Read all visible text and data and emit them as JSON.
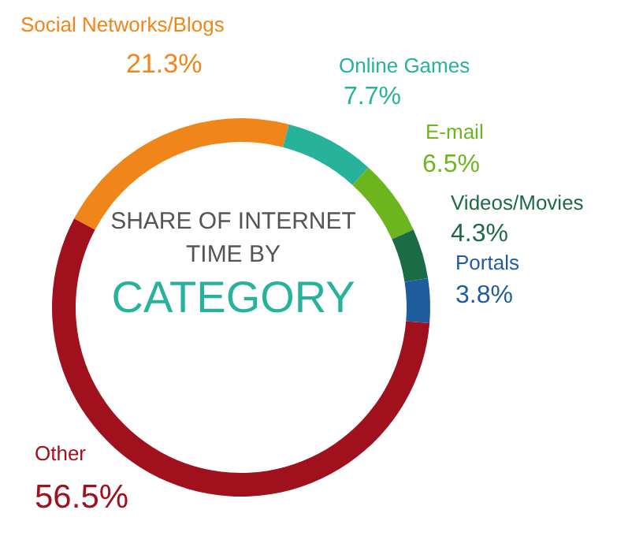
{
  "chart_data": {
    "type": "donut",
    "title": "SHARE OF INTERNET TIME BY",
    "subtitle": "CATEGORY",
    "categories": [
      "Social Networks/Blogs",
      "Online Games",
      "E-mail",
      "Videos/Movies",
      "Portals",
      "Other"
    ],
    "values": [
      21.3,
      7.7,
      6.5,
      4.3,
      3.8,
      56.5
    ],
    "colors": [
      "#f08519",
      "#27b29b",
      "#6db51f",
      "#1c6b47",
      "#1f5c9e",
      "#a0111d"
    ],
    "value_labels": [
      "21.3%",
      "7.7%",
      "6.5%",
      "4.3%",
      "3.8%",
      "56.5%"
    ],
    "legend": false
  }
}
